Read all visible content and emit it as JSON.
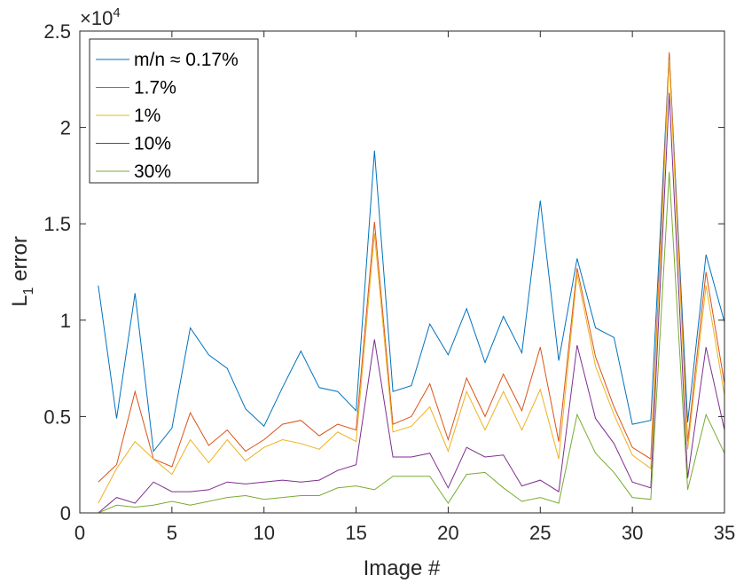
{
  "chart_data": {
    "type": "line",
    "title": "",
    "xlabel": "Image #",
    "ylabel": "L1 error",
    "ylabel_main": "L",
    "ylabel_sub": "1",
    "ylabel_rest": " error",
    "y_multiplier_base": "×10",
    "y_multiplier_exp": "4",
    "xlim": [
      0,
      35
    ],
    "ylim": [
      0,
      25000
    ],
    "xticks": [
      0,
      5,
      10,
      15,
      20,
      25,
      30,
      35
    ],
    "xtick_labels": [
      "0",
      "5",
      "10",
      "15",
      "20",
      "25",
      "30",
      "35"
    ],
    "yticks": [
      0,
      5000,
      10000,
      15000,
      20000,
      25000
    ],
    "ytick_labels": [
      "0",
      "0.5",
      "1",
      "1.5",
      "2",
      "2.5"
    ],
    "grid": false,
    "legend_position": "top-left",
    "x": [
      1,
      2,
      3,
      4,
      5,
      6,
      7,
      8,
      9,
      10,
      11,
      12,
      13,
      14,
      15,
      16,
      17,
      18,
      19,
      20,
      21,
      22,
      23,
      24,
      25,
      26,
      27,
      28,
      29,
      30,
      31,
      32,
      33,
      34,
      35
    ],
    "series": [
      {
        "name": "m/n ≈ 0.17%",
        "color": "#0072BD",
        "values": [
          11800,
          4900,
          11400,
          3200,
          4400,
          9600,
          8200,
          7500,
          5400,
          4500,
          6500,
          8400,
          6500,
          6300,
          5300,
          18800,
          6300,
          6600,
          9800,
          8200,
          10600,
          7800,
          10200,
          8300,
          16200,
          7900,
          13200,
          9600,
          9100,
          4600,
          4800,
          23800,
          4700,
          13400,
          9900
        ]
      },
      {
        "name": "1.7%",
        "color": "#D95319",
        "values": [
          1600,
          2500,
          6300,
          2800,
          2400,
          5200,
          3500,
          4300,
          3200,
          3800,
          4600,
          4800,
          4000,
          4600,
          4300,
          15100,
          4600,
          5000,
          6700,
          3800,
          7000,
          5000,
          7200,
          5300,
          8600,
          3700,
          12700,
          8100,
          5500,
          3400,
          2800,
          23900,
          3700,
          12500,
          6700
        ]
      },
      {
        "name": "1%",
        "color": "#EDB120",
        "values": [
          500,
          2300,
          3700,
          2800,
          2000,
          3800,
          2600,
          3800,
          2700,
          3400,
          3800,
          3600,
          3300,
          4200,
          3700,
          14500,
          4200,
          4500,
          5500,
          3200,
          6300,
          4300,
          6300,
          4300,
          6400,
          2800,
          12400,
          7600,
          5100,
          3000,
          2300,
          23500,
          3300,
          11800,
          6100
        ]
      },
      {
        "name": "10%",
        "color": "#7E2F8E",
        "values": [
          0,
          800,
          500,
          1600,
          1100,
          1100,
          1200,
          1600,
          1500,
          1600,
          1700,
          1600,
          1700,
          2200,
          2500,
          9000,
          2900,
          2900,
          3100,
          1300,
          3400,
          2900,
          3000,
          1400,
          1700,
          1100,
          8700,
          4900,
          3600,
          1600,
          1300,
          21800,
          1800,
          8600,
          4300
        ]
      },
      {
        "name": "30%",
        "color": "#77AC30",
        "values": [
          0,
          400,
          300,
          400,
          600,
          400,
          600,
          800,
          900,
          700,
          800,
          900,
          900,
          1300,
          1400,
          1200,
          1900,
          1900,
          1900,
          500,
          2000,
          2100,
          1300,
          600,
          800,
          500,
          5100,
          3100,
          2100,
          800,
          700,
          17700,
          1200,
          5100,
          3100
        ]
      }
    ]
  }
}
